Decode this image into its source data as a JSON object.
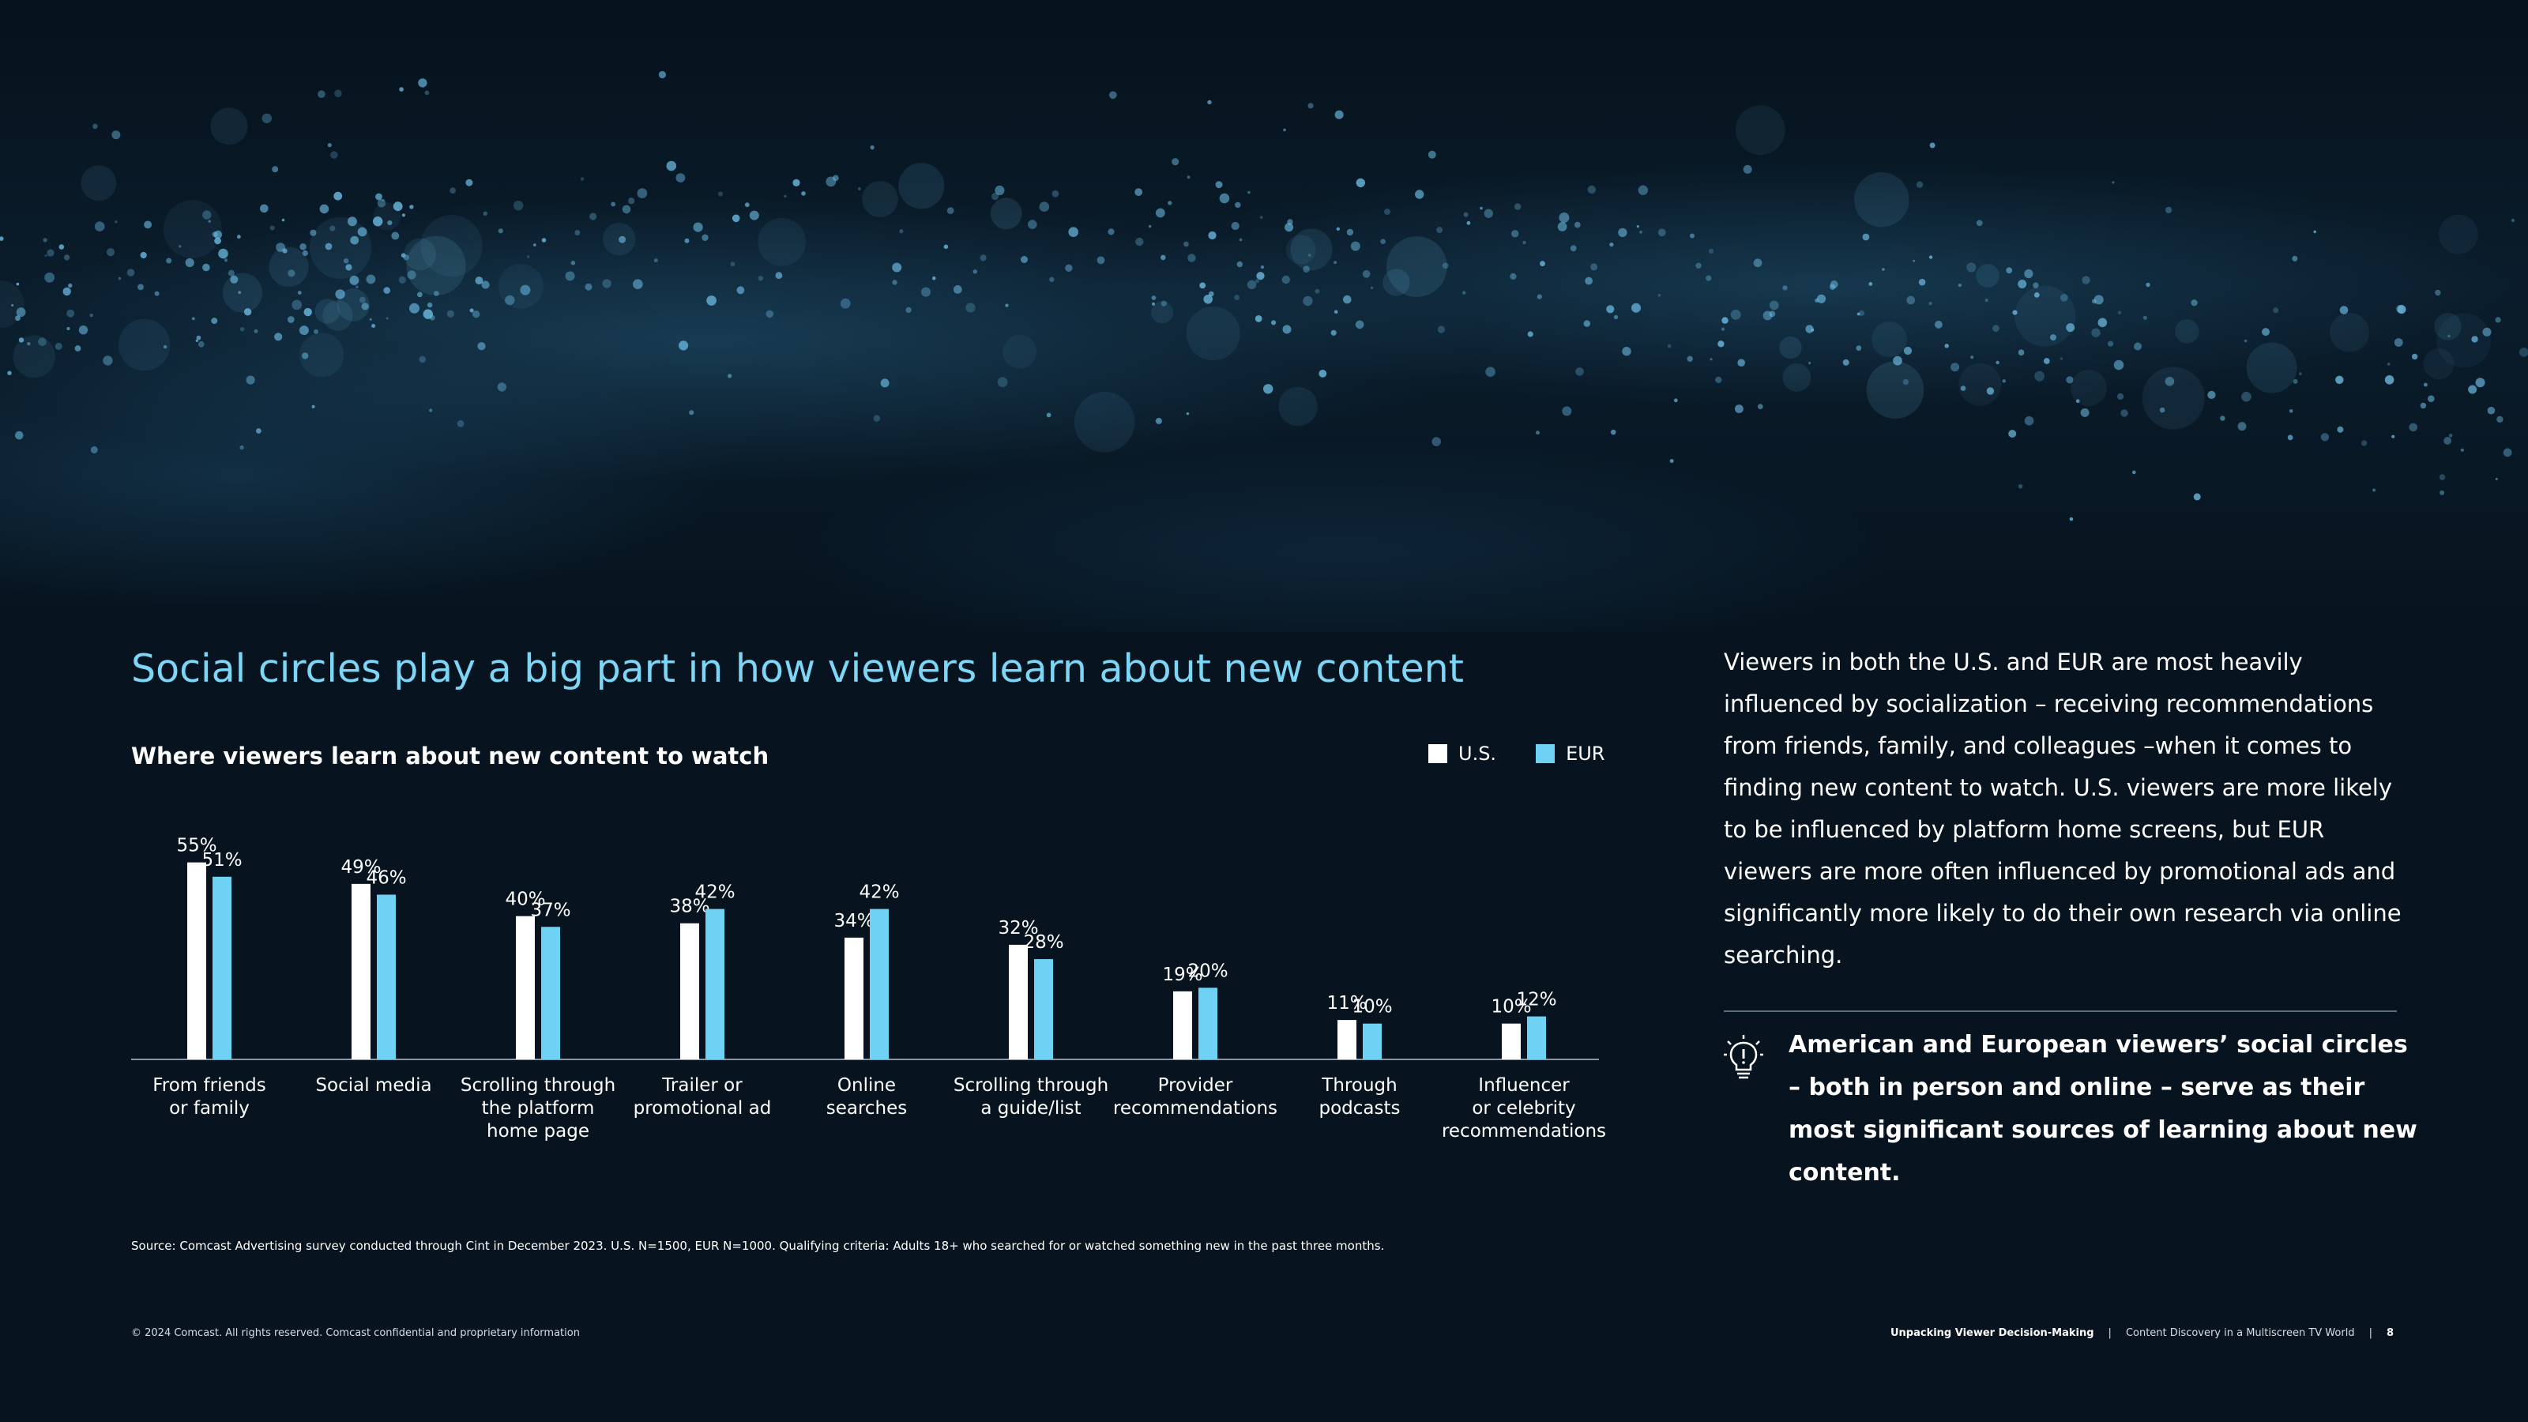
{
  "headline": "Social circles play a big part in how viewers learn about new content",
  "colors": {
    "background": "#07141f",
    "accent": "#7dd6f5",
    "us": "#ffffff",
    "eur": "#6fd2f5"
  },
  "chart_data": {
    "type": "bar",
    "title": "Where viewers learn about new content to watch",
    "categories": [
      "From friends\nor family",
      "Social media",
      "Scrolling through\nthe platform\nhome page",
      "Trailer or\npromotional ad",
      "Online\nsearches",
      "Scrolling through\na guide/list",
      "Provider\nrecommendations",
      "Through\npodcasts",
      "Influencer\nor celebrity\nrecommendations"
    ],
    "series": [
      {
        "name": "U.S.",
        "values": [
          55,
          49,
          40,
          38,
          34,
          32,
          19,
          11,
          10
        ],
        "color": "#ffffff"
      },
      {
        "name": "EUR",
        "values": [
          51,
          46,
          37,
          42,
          42,
          28,
          20,
          10,
          12
        ],
        "color": "#6fd2f5"
      }
    ],
    "unit": "%",
    "ylim": [
      0,
      60
    ],
    "grid": false,
    "legend_position": "top-right",
    "xlabel": "",
    "ylabel": ""
  },
  "body_text": "Viewers in both the U.S. and EUR are most heavily influenced by socialization – receiving recommendations from friends, family, and colleagues –when it comes to finding new content to watch. U.S. viewers are more likely to be influenced by platform home screens, but EUR viewers are more often influenced by promotional ads and significantly more likely to do their own research via online searching.",
  "callout": {
    "icon": "lightbulb-icon",
    "text": "American and European viewers’ social circles – both in person and online – serve as their most significant sources of learning about new content."
  },
  "source": "Source: Comcast Advertising survey conducted through Cint in December 2023. U.S. N=1500, EUR N=1000. Qualifying criteria: Adults 18+ who searched for or watched something new in the past three months.",
  "footer": {
    "copyright": "© 2024 Comcast. All rights reserved. Comcast confidential and proprietary information",
    "doc_title": "Unpacking Viewer Decision-Making",
    "separator": "|",
    "report_title": "Content Discovery in a Multiscreen TV World",
    "page_number": "8"
  }
}
